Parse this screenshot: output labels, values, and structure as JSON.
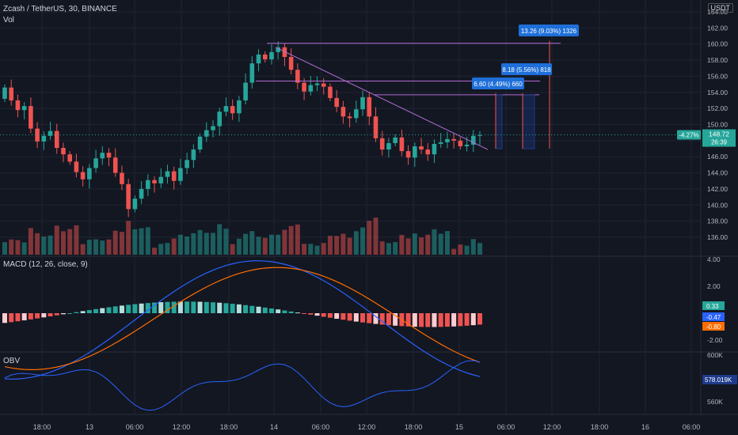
{
  "header": {
    "symbol_line": "Zcash / TetherUS, 30, BINANCE",
    "vol_label": "Vol",
    "currency": "USDT",
    "macd_label": "MACD (12, 26, close, 9)",
    "obv_label": "OBV"
  },
  "price_axis": {
    "ticks": [
      "164.00",
      "162.00",
      "160.00",
      "158.00",
      "156.00",
      "154.00",
      "152.00",
      "150.00",
      "148.00",
      "146.00",
      "144.00",
      "142.00",
      "140.00",
      "138.00",
      "136.00"
    ],
    "last_price": "148.72",
    "change_pct": "-4.27%",
    "countdown": "26:39"
  },
  "macd_axis": {
    "ticks": [
      "4.00",
      "2.00",
      "0.00",
      "-2.00"
    ],
    "hist_value": "0.33",
    "macd_value": "-0.47",
    "signal_value": "-0.80"
  },
  "obv_axis": {
    "ticks": [
      "600K",
      "578.019K",
      "560K"
    ],
    "obv_value": "578.019K"
  },
  "time_axis": {
    "labels": [
      "18:00",
      "13",
      "06:00",
      "12:00",
      "18:00",
      "14",
      "06:00",
      "12:00",
      "18:00",
      "15",
      "06:00",
      "12:00",
      "18:00",
      "16",
      "06:00"
    ]
  },
  "annotations": [
    {
      "text": "13.26 (9.03%) 1326"
    },
    {
      "text": "8.18 (5.56%) 818"
    },
    {
      "text": "6.60 (4.49%) 660"
    }
  ],
  "colors": {
    "background": "#131722",
    "up": "#26a69a",
    "down": "#ef5350",
    "trendline": "#b46cd6",
    "annotation_box": "#1e6fd9",
    "macd_line": "#2962ff",
    "signal_line": "#ff6d00",
    "obv_line": "#2962ff",
    "grid": "#1f2433"
  },
  "chart_data": {
    "type": "candlestick",
    "title": "Zcash / TetherUS, 30, BINANCE",
    "ylim": [
      135,
      165
    ],
    "key_levels": [
      160.1,
      155.4,
      153.7
    ],
    "close_series": [
      154.6,
      153.0,
      151.8,
      152.3,
      149.5,
      147.9,
      148.6,
      149.2,
      147.1,
      146.3,
      145.4,
      144.1,
      143.2,
      144.6,
      145.8,
      146.5,
      145.9,
      144.0,
      142.6,
      139.5,
      140.8,
      142.0,
      143.1,
      142.7,
      143.5,
      144.2,
      143.0,
      144.6,
      145.6,
      146.9,
      148.5,
      149.3,
      149.8,
      151.6,
      152.3,
      151.4,
      153.0,
      155.2,
      157.6,
      158.7,
      158.1,
      159.0,
      159.6,
      158.4,
      156.8,
      155.2,
      154.1,
      154.9,
      155.1,
      154.7,
      153.3,
      152.2,
      151.0,
      150.8,
      151.9,
      153.4,
      151.0,
      148.3,
      146.9,
      147.7,
      148.4,
      146.7,
      145.9,
      147.3,
      146.9,
      146.3,
      147.6,
      147.8,
      148.2,
      148.0,
      147.3,
      147.5,
      148.6,
      148.7
    ],
    "x_axis_labels": [
      "18:00",
      "13",
      "06:00",
      "12:00",
      "18:00",
      "14",
      "06:00",
      "12:00",
      "18:00",
      "15",
      "06:00",
      "12:00",
      "18:00",
      "16",
      "06:00"
    ]
  }
}
